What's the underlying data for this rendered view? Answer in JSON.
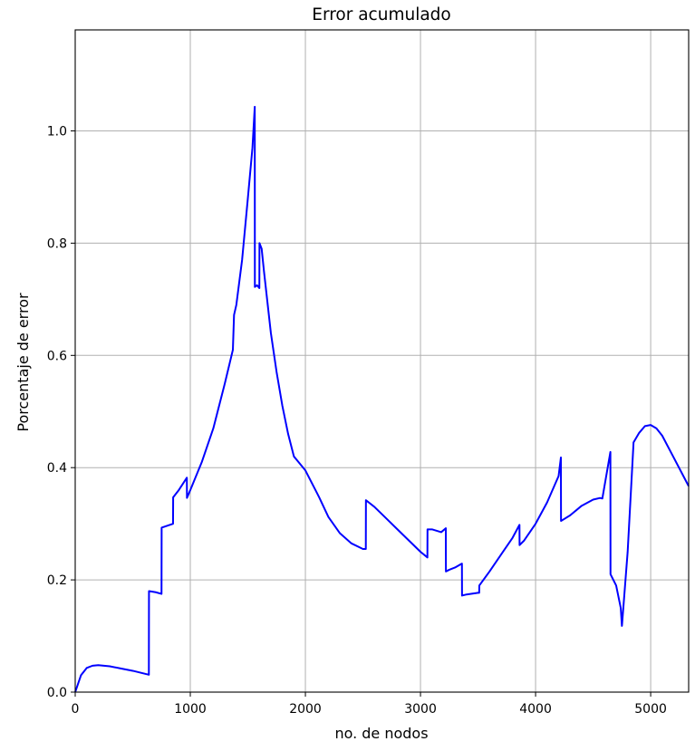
{
  "chart_data": {
    "type": "line",
    "title": "Error acumulado",
    "xlabel": "no. de nodos",
    "ylabel": "Porcentaje de error",
    "xlim": [
      0,
      5330
    ],
    "ylim": [
      0,
      1.18
    ],
    "xticks": [
      0,
      1000,
      2000,
      3000,
      4000,
      5000
    ],
    "yticks": [
      0.0,
      0.2,
      0.4,
      0.6,
      0.8,
      1.0
    ],
    "xtick_labels": [
      "0",
      "1000",
      "2000",
      "3000",
      "4000",
      "5000"
    ],
    "ytick_labels": [
      "0.0",
      "0.2",
      "0.4",
      "0.6",
      "0.8",
      "1.0"
    ],
    "grid": true,
    "line_color": "#0000ff",
    "series": [
      {
        "x": [
          0,
          50,
          100,
          150,
          200,
          300,
          400,
          500,
          640,
          641,
          700,
          750,
          751,
          850,
          851,
          900,
          970,
          971,
          1000,
          1100,
          1200,
          1300,
          1370,
          1380,
          1400,
          1450,
          1500,
          1540,
          1560,
          1561,
          1580,
          1600,
          1601,
          1620,
          1640,
          1700,
          1750,
          1800,
          1850,
          1900,
          2000,
          2100,
          2120,
          2200,
          2300,
          2400,
          2500,
          2525,
          2526,
          2600,
          2700,
          2800,
          2900,
          3000,
          3060,
          3061,
          3100,
          3180,
          3220,
          3221,
          3250,
          3300,
          3360,
          3361,
          3400,
          3500,
          3510,
          3511,
          3600,
          3700,
          3800,
          3860,
          3861,
          3900,
          4000,
          4100,
          4200,
          4220,
          4221,
          4300,
          4400,
          4500,
          4560,
          4580,
          4650,
          4651,
          4700,
          4740,
          4750,
          4751,
          4800,
          4850,
          4851,
          4900,
          4950,
          5000,
          5050,
          5100,
          5200,
          5330
        ],
        "y": [
          0.0,
          0.03,
          0.043,
          0.047,
          0.048,
          0.046,
          0.042,
          0.038,
          0.031,
          0.18,
          0.178,
          0.175,
          0.293,
          0.3,
          0.347,
          0.36,
          0.382,
          0.346,
          0.36,
          0.41,
          0.47,
          0.55,
          0.61,
          0.672,
          0.69,
          0.77,
          0.88,
          0.97,
          1.043,
          0.722,
          0.725,
          0.72,
          0.8,
          0.79,
          0.75,
          0.64,
          0.57,
          0.51,
          0.46,
          0.42,
          0.395,
          0.355,
          0.347,
          0.312,
          0.283,
          0.265,
          0.255,
          0.255,
          0.342,
          0.33,
          0.31,
          0.29,
          0.27,
          0.25,
          0.24,
          0.29,
          0.29,
          0.285,
          0.292,
          0.215,
          0.218,
          0.222,
          0.229,
          0.172,
          0.174,
          0.177,
          0.177,
          0.19,
          0.215,
          0.245,
          0.275,
          0.298,
          0.262,
          0.27,
          0.3,
          0.338,
          0.385,
          0.418,
          0.305,
          0.315,
          0.332,
          0.343,
          0.346,
          0.345,
          0.428,
          0.21,
          0.19,
          0.15,
          0.118,
          0.12,
          0.25,
          0.44,
          0.445,
          0.462,
          0.474,
          0.476,
          0.47,
          0.457,
          0.418,
          0.367
        ]
      }
    ]
  }
}
